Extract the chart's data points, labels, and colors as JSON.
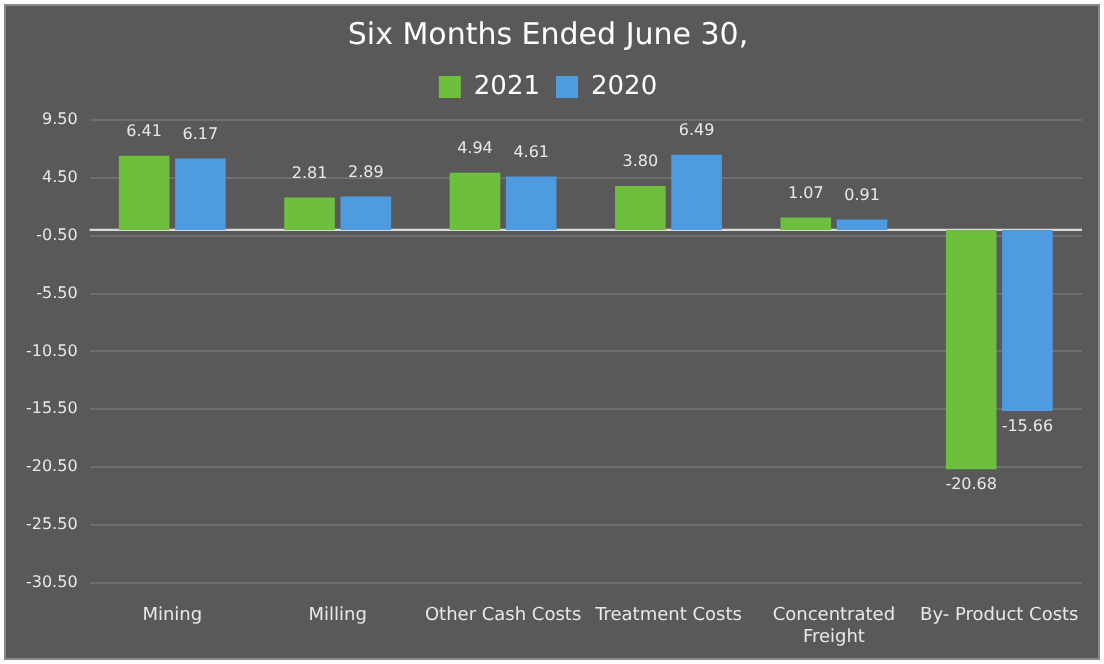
{
  "chart_data": {
    "type": "bar",
    "title": "Six Months Ended June 30,",
    "categories": [
      "Mining",
      "Milling",
      "Other Cash Costs",
      "Treatment Costs",
      "Concentrated Freight",
      "By- Product Costs"
    ],
    "series": [
      {
        "name": "2021",
        "color": "#6fbf3f",
        "values": [
          6.41,
          2.81,
          4.94,
          3.8,
          1.07,
          -20.68
        ],
        "value_labels": [
          "6.41",
          "2.81",
          "4.94",
          "3.80",
          "1.07",
          "-20.68"
        ]
      },
      {
        "name": "2020",
        "color": "#4f9be0",
        "values": [
          6.17,
          2.89,
          4.61,
          6.49,
          0.91,
          -15.66
        ],
        "value_labels": [
          "6.17",
          "2.89",
          "4.61",
          "6.49",
          "0.91",
          "-15.66"
        ]
      }
    ],
    "ylim": [
      -30.5,
      9.5
    ],
    "yticks": [
      "9.50",
      "4.50",
      "-0.50",
      "-5.50",
      "-10.50",
      "-15.50",
      "-20.50",
      "-25.50",
      "-30.50"
    ],
    "grid": "y",
    "legend": "top"
  }
}
